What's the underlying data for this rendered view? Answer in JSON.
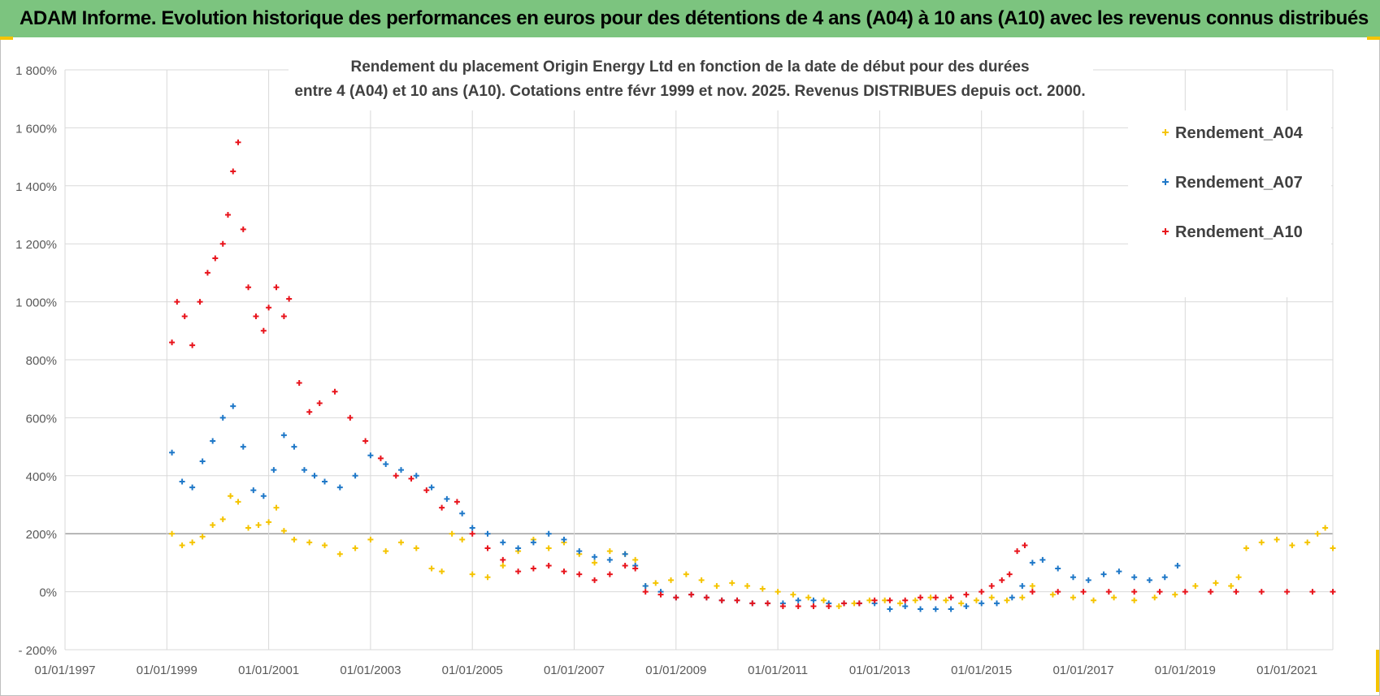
{
  "banner": {
    "title": "ADAM Informe. Evolution historique des performances en euros pour des détentions de 4 ans (A04) à 10 ans (A10) avec les revenus connus distribués"
  },
  "colors": {
    "banner_bg": "#7cc47f",
    "A04": "#f5c400",
    "A07": "#1f78c8",
    "A10": "#e8141c"
  },
  "chart_data": {
    "type": "scatter",
    "title_line1": "Rendement du placement Origin Energy Ltd en fonction de la date de début pour des durées",
    "title_line2": "entre 4 (A04) et 10 ans (A10). Cotations entre févr 1999 et nov. 2025. Revenus DISTRIBUES depuis oct. 2000.",
    "xlabel": "",
    "ylabel": "",
    "x_tick_labels": [
      "01/01/1997",
      "01/01/1999",
      "01/01/2001",
      "01/01/2003",
      "01/01/2005",
      "01/01/2007",
      "01/01/2009",
      "01/01/2011",
      "01/01/2013",
      "01/01/2015",
      "01/01/2017",
      "01/01/2019",
      "01/01/2021"
    ],
    "x_tick_values": [
      1997,
      1999,
      2001,
      2003,
      2005,
      2007,
      2009,
      2011,
      2013,
      2015,
      2017,
      2019,
      2021
    ],
    "xlim": [
      1997,
      2021.9
    ],
    "y_tick_labels": [
      "- 200%",
      "0%",
      "200%",
      "400%",
      "600%",
      "800%",
      "1 000%",
      "1 200%",
      "1 400%",
      "1 600%",
      "1 800%"
    ],
    "y_tick_values": [
      -200,
      0,
      200,
      400,
      600,
      800,
      1000,
      1200,
      1400,
      1600,
      1800
    ],
    "ylim": [
      -200,
      1800
    ],
    "grid": true,
    "legend_position": "top-right",
    "marker": "+",
    "series": [
      {
        "name": "Rendement_A04",
        "x": [
          1999.1,
          1999.3,
          1999.5,
          1999.7,
          1999.9,
          2000.1,
          2000.25,
          2000.4,
          2000.6,
          2000.8,
          2001.0,
          2001.15,
          2001.3,
          2001.5,
          2001.8,
          2002.1,
          2002.4,
          2002.7,
          2003.0,
          2003.3,
          2003.6,
          2003.9,
          2004.2,
          2004.4,
          2004.6,
          2004.8,
          2005.0,
          2005.3,
          2005.6,
          2005.9,
          2006.2,
          2006.5,
          2006.8,
          2007.1,
          2007.4,
          2007.7,
          2008.0,
          2008.2,
          2008.4,
          2008.6,
          2008.9,
          2009.2,
          2009.5,
          2009.8,
          2010.1,
          2010.4,
          2010.7,
          2011.0,
          2011.3,
          2011.6,
          2011.9,
          2012.2,
          2012.5,
          2012.8,
          2013.1,
          2013.4,
          2013.7,
          2014.0,
          2014.3,
          2014.6,
          2014.9,
          2015.2,
          2015.5,
          2015.8,
          2016.0,
          2016.4,
          2016.8,
          2017.2,
          2017.6,
          2018.0,
          2018.4,
          2018.8,
          2019.2,
          2019.6,
          2019.9,
          2020.05,
          2020.2,
          2020.5,
          2020.8,
          2021.1,
          2021.4,
          2021.6,
          2021.75,
          2021.9
        ],
        "values": [
          200,
          160,
          170,
          190,
          230,
          250,
          330,
          310,
          220,
          230,
          240,
          290,
          210,
          180,
          170,
          160,
          130,
          150,
          180,
          140,
          170,
          150,
          80,
          70,
          200,
          180,
          60,
          50,
          90,
          140,
          180,
          150,
          170,
          130,
          100,
          140,
          130,
          110,
          20,
          30,
          40,
          60,
          40,
          20,
          30,
          20,
          10,
          0,
          -10,
          -20,
          -30,
          -50,
          -40,
          -30,
          -30,
          -40,
          -30,
          -20,
          -30,
          -40,
          -30,
          -20,
          -30,
          -20,
          20,
          -10,
          -20,
          -30,
          -20,
          -30,
          -20,
          -10,
          20,
          30,
          20,
          50,
          150,
          170,
          180,
          160,
          170,
          200,
          220,
          150
        ]
      },
      {
        "name": "Rendement_A07",
        "x": [
          1999.1,
          1999.3,
          1999.5,
          1999.7,
          1999.9,
          2000.1,
          2000.3,
          2000.5,
          2000.7,
          2000.9,
          2001.1,
          2001.3,
          2001.5,
          2001.7,
          2001.9,
          2002.1,
          2002.4,
          2002.7,
          2003.0,
          2003.3,
          2003.6,
          2003.9,
          2004.2,
          2004.5,
          2004.8,
          2005.0,
          2005.3,
          2005.6,
          2005.9,
          2006.2,
          2006.5,
          2006.8,
          2007.1,
          2007.4,
          2007.7,
          2008.0,
          2008.2,
          2008.4,
          2008.7,
          2009.0,
          2009.3,
          2009.6,
          2009.9,
          2010.2,
          2010.5,
          2010.8,
          2011.1,
          2011.4,
          2011.7,
          2012.0,
          2012.3,
          2012.6,
          2012.9,
          2013.2,
          2013.5,
          2013.8,
          2014.1,
          2014.4,
          2014.7,
          2015.0,
          2015.3,
          2015.6,
          2015.8,
          2016.0,
          2016.2,
          2016.5,
          2016.8,
          2017.1,
          2017.4,
          2017.7,
          2018.0,
          2018.3,
          2018.6,
          2018.85
        ],
        "values": [
          480,
          380,
          360,
          450,
          520,
          600,
          640,
          500,
          350,
          330,
          420,
          540,
          500,
          420,
          400,
          380,
          360,
          400,
          470,
          440,
          420,
          400,
          360,
          320,
          270,
          220,
          200,
          170,
          150,
          170,
          200,
          180,
          140,
          120,
          110,
          130,
          90,
          20,
          0,
          -20,
          -10,
          -20,
          -30,
          -30,
          -40,
          -40,
          -40,
          -30,
          -30,
          -40,
          -40,
          -40,
          -40,
          -60,
          -50,
          -60,
          -60,
          -60,
          -50,
          -40,
          -40,
          -20,
          20,
          100,
          110,
          80,
          50,
          40,
          60,
          70,
          50,
          40,
          50,
          90
        ]
      },
      {
        "name": "Rendement_A10",
        "x": [
          1999.1,
          1999.2,
          1999.35,
          1999.5,
          1999.65,
          1999.8,
          1999.95,
          2000.1,
          2000.2,
          2000.3,
          2000.4,
          2000.5,
          2000.6,
          2000.75,
          2000.9,
          2001.0,
          2001.15,
          2001.3,
          2001.4,
          2001.6,
          2001.8,
          2002.0,
          2002.3,
          2002.6,
          2002.9,
          2003.2,
          2003.5,
          2003.8,
          2004.1,
          2004.4,
          2004.7,
          2005.0,
          2005.3,
          2005.6,
          2005.9,
          2006.2,
          2006.5,
          2006.8,
          2007.1,
          2007.4,
          2007.7,
          2008.0,
          2008.2,
          2008.4,
          2008.7,
          2009.0,
          2009.3,
          2009.6,
          2009.9,
          2010.2,
          2010.5,
          2010.8,
          2011.1,
          2011.4,
          2011.7,
          2012.0,
          2012.3,
          2012.6,
          2012.9,
          2013.2,
          2013.5,
          2013.8,
          2014.1,
          2014.4,
          2014.7,
          2015.0,
          2015.2,
          2015.4,
          2015.55,
          2015.7,
          2015.85,
          2016.0,
          2016.5,
          2017.0,
          2017.5,
          2018.0,
          2018.5,
          2019.0,
          2019.5,
          2020.0,
          2020.5,
          2021.0,
          2021.5,
          2021.9
        ],
        "values": [
          860,
          1000,
          950,
          850,
          1000,
          1100,
          1150,
          1200,
          1300,
          1450,
          1550,
          1250,
          1050,
          950,
          900,
          980,
          1050,
          950,
          1010,
          720,
          620,
          650,
          690,
          600,
          520,
          460,
          400,
          390,
          350,
          290,
          310,
          200,
          150,
          110,
          70,
          80,
          90,
          70,
          60,
          40,
          60,
          90,
          80,
          0,
          -10,
          -20,
          -10,
          -20,
          -30,
          -30,
          -40,
          -40,
          -50,
          -50,
          -50,
          -50,
          -40,
          -40,
          -30,
          -30,
          -30,
          -20,
          -20,
          -20,
          -10,
          0,
          20,
          40,
          60,
          140,
          160,
          0,
          0,
          0,
          0,
          0,
          0,
          0,
          0,
          0,
          0,
          0,
          0,
          0
        ]
      }
    ]
  }
}
